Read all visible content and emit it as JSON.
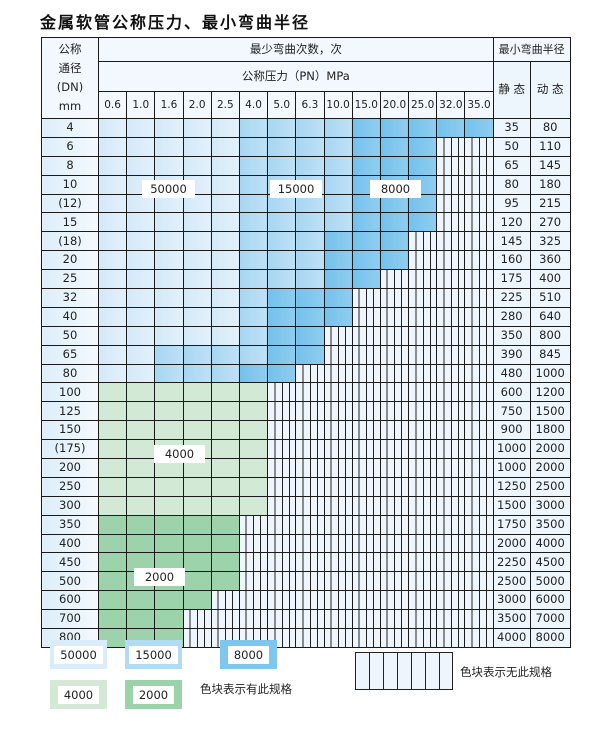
{
  "title": "金属软管公称压力、最小弯曲半径",
  "header": {
    "dn_lines": [
      "公称",
      "通径",
      "(DN)",
      "mm"
    ],
    "cycles": "最少弯曲次数，次",
    "pressure": "公称压力（PN）MPa",
    "radius": "最小弯曲半径",
    "static": "静 态",
    "dynamic": "动 态",
    "pressures": [
      "0.6",
      "1.0",
      "1.6",
      "2.0",
      "2.5",
      "4.0",
      "5.0",
      "6.3",
      "10.0",
      "15.0",
      "20.0",
      "25.0",
      "32.0",
      "35.0"
    ]
  },
  "colors": {
    "L": "#d9ecf9",
    "M": "#b2dcf3",
    "D": "#7fc6ee",
    "G": "#d3e9d6",
    "H": "#9bd2a9",
    "E": "#eef5fc"
  },
  "rows": [
    {
      "dn": "4",
      "static": "35",
      "dynamic": "80",
      "cells": "LLLLLMMMMDDDDD"
    },
    {
      "dn": "6",
      "static": "50",
      "dynamic": "110",
      "cells": "LLLLLMMMMDDDEE"
    },
    {
      "dn": "8",
      "static": "65",
      "dynamic": "145",
      "cells": "LLLLLMMMMDDDEE"
    },
    {
      "dn": "10",
      "static": "80",
      "dynamic": "180",
      "cells": "LLLLLMMMMDDDEE"
    },
    {
      "dn": "(12)",
      "static": "95",
      "dynamic": "215",
      "cells": "LLLLLMMMMDDDEE"
    },
    {
      "dn": "15",
      "static": "120",
      "dynamic": "270",
      "cells": "LLLLLMMMMDDDEE"
    },
    {
      "dn": "(18)",
      "static": "145",
      "dynamic": "325",
      "cells": "LLLLLMMMDDDEEE"
    },
    {
      "dn": "20",
      "static": "160",
      "dynamic": "360",
      "cells": "LLLLLMMMDDDEEE"
    },
    {
      "dn": "25",
      "static": "175",
      "dynamic": "400",
      "cells": "LLLLLMMMDDEEEE"
    },
    {
      "dn": "32",
      "static": "225",
      "dynamic": "510",
      "cells": "LLLLLMDDDEEEEE"
    },
    {
      "dn": "40",
      "static": "280",
      "dynamic": "640",
      "cells": "LLLLLMDDDEEEEE"
    },
    {
      "dn": "50",
      "static": "350",
      "dynamic": "800",
      "cells": "LLLLLMDDEEEEEE"
    },
    {
      "dn": "65",
      "static": "390",
      "dynamic": "845",
      "cells": "LLMMMMDDEEEEEE"
    },
    {
      "dn": "80",
      "static": "480",
      "dynamic": "1000",
      "cells": "LLMMMDDEEEEEEE"
    },
    {
      "dn": "100",
      "static": "600",
      "dynamic": "1200",
      "cells": "GGGGGGEEEEEEEE"
    },
    {
      "dn": "125",
      "static": "750",
      "dynamic": "1500",
      "cells": "GGGGGGEEEEEEEE"
    },
    {
      "dn": "150",
      "static": "900",
      "dynamic": "1800",
      "cells": "GGGGGGEEEEEEEE"
    },
    {
      "dn": "(175)",
      "static": "1000",
      "dynamic": "2000",
      "cells": "GGGGGGEEEEEEEE"
    },
    {
      "dn": "200",
      "static": "1000",
      "dynamic": "2000",
      "cells": "GGGGGGEEEEEEEE"
    },
    {
      "dn": "250",
      "static": "1250",
      "dynamic": "2500",
      "cells": "GGGGGGEEEEEEEE"
    },
    {
      "dn": "300",
      "static": "1500",
      "dynamic": "3000",
      "cells": "GGGGGGEEEEEEEE"
    },
    {
      "dn": "350",
      "static": "1750",
      "dynamic": "3500",
      "cells": "HHHHHEEEEEEEEE"
    },
    {
      "dn": "400",
      "static": "2000",
      "dynamic": "4000",
      "cells": "HHHHHEEEEEEEEE"
    },
    {
      "dn": "450",
      "static": "2250",
      "dynamic": "4500",
      "cells": "HHHHHEEEEEEEEE"
    },
    {
      "dn": "500",
      "static": "2500",
      "dynamic": "5000",
      "cells": "HHHHHEEEEEEEEE"
    },
    {
      "dn": "600",
      "static": "3000",
      "dynamic": "6000",
      "cells": "HHHHEEEEEEEEEE"
    },
    {
      "dn": "700",
      "static": "3500",
      "dynamic": "7000",
      "cells": "HHHEEEEEEEEEEE"
    },
    {
      "dn": "800",
      "static": "4000",
      "dynamic": "8000",
      "cells": "HHHEEEEEEEEEEE"
    }
  ],
  "region_labels": {
    "L": "50000",
    "M": "15000",
    "D": "8000",
    "G": "4000",
    "H": "2000"
  },
  "legend": {
    "items": [
      {
        "code": "L",
        "label": "50000"
      },
      {
        "code": "M",
        "label": "15000"
      },
      {
        "code": "D",
        "label": "8000"
      },
      {
        "code": "G",
        "label": "4000"
      },
      {
        "code": "H",
        "label": "2000"
      }
    ],
    "has_spec": "色块表示有此规格",
    "no_spec": "色块表示无此规格"
  }
}
